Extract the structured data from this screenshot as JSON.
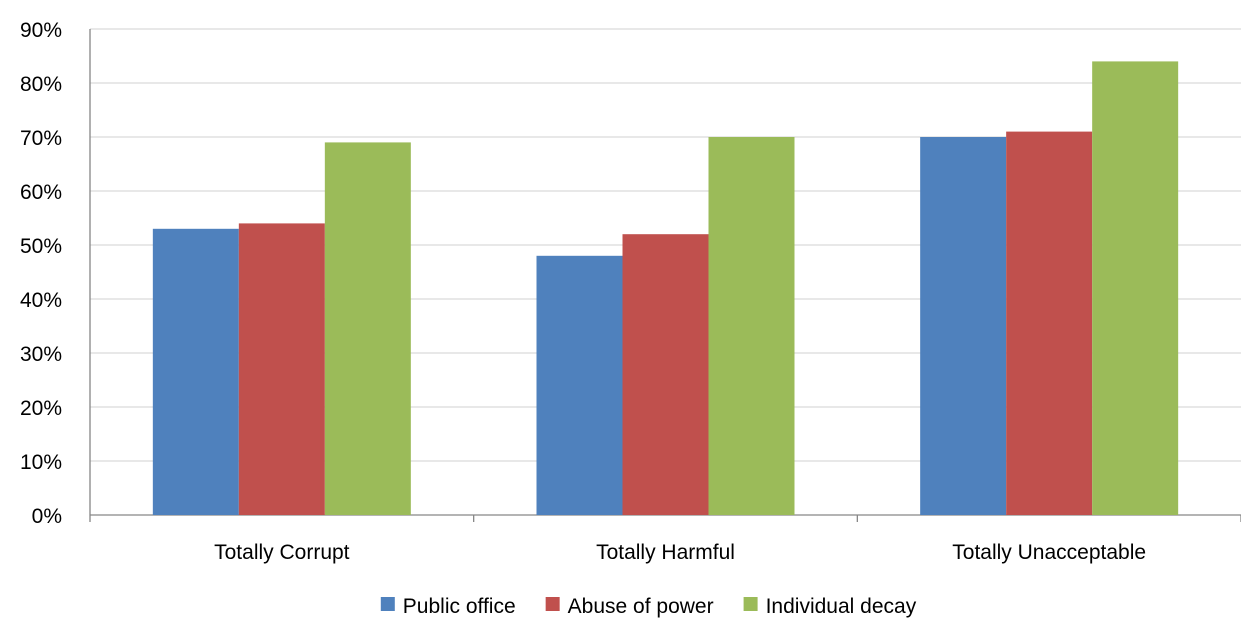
{
  "chart_data": {
    "type": "bar",
    "categories": [
      "Totally Corrupt",
      "Totally Harmful",
      "Totally Unacceptable"
    ],
    "series": [
      {
        "name": "Public office",
        "values": [
          53,
          48,
          70
        ],
        "color": "#4F81BD"
      },
      {
        "name": "Abuse of power",
        "values": [
          54,
          52,
          71
        ],
        "color": "#C0504D"
      },
      {
        "name": "Individual decay",
        "values": [
          69,
          70,
          84
        ],
        "color": "#9BBB59"
      }
    ],
    "ylim": [
      0,
      90
    ],
    "yticks": [
      "0%",
      "10%",
      "20%",
      "30%",
      "40%",
      "50%",
      "60%",
      "70%",
      "80%",
      "90%"
    ],
    "value_unit": "%",
    "grid": true,
    "legend_position": "bottom"
  }
}
